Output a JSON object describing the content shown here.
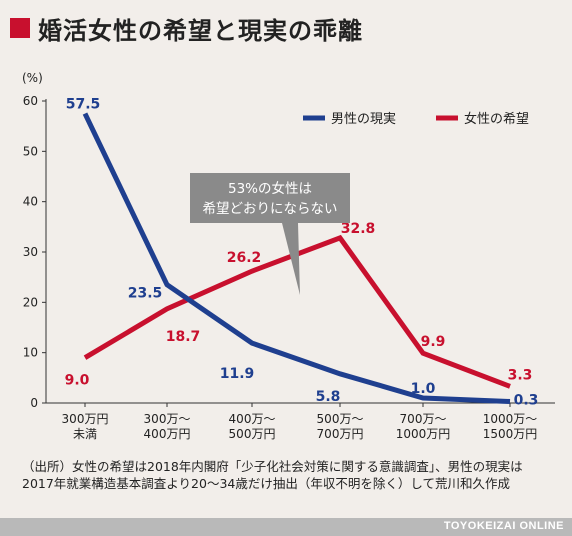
{
  "header": {
    "title": "婚活女性の希望と現実の乖離"
  },
  "chart_data": {
    "type": "line",
    "unit_label": "(%)",
    "ylim": [
      0,
      60
    ],
    "yticks": [
      0,
      10,
      20,
      30,
      40,
      50,
      60
    ],
    "categories": [
      [
        "300万円",
        "未満"
      ],
      [
        "300万～",
        "400万円"
      ],
      [
        "400万～",
        "500万円"
      ],
      [
        "500万～",
        "700万円"
      ],
      [
        "700万～",
        "1000万円"
      ],
      [
        "1000万～",
        "1500万円"
      ]
    ],
    "series": [
      {
        "name": "男性の現実",
        "color": "#1f3f8f",
        "values": [
          57.5,
          23.5,
          11.9,
          5.8,
          1.0,
          0.3
        ],
        "labels": [
          "57.5",
          "23.5",
          "11.9",
          "5.8",
          "1.0",
          "0.3"
        ]
      },
      {
        "name": "女性の希望",
        "color": "#c8102e",
        "values": [
          9.0,
          18.7,
          26.2,
          32.8,
          9.9,
          3.3
        ],
        "labels": [
          "9.0",
          "18.7",
          "26.2",
          "32.8",
          "9.9",
          "3.3"
        ]
      }
    ],
    "legend_position": "top-right",
    "grid": false,
    "callout": [
      "53%の女性は",
      "希望どおりにならない"
    ]
  },
  "source_note": "（出所）女性の希望は2018年内閣府「少子化社会対策に関する意識調査」、男性の現実は2017年就業構造基本調査より20～34歳だけ抽出（年収不明を除く）して荒川和久作成",
  "footer": {
    "brand": "TOYOKEIZAI ONLINE"
  }
}
